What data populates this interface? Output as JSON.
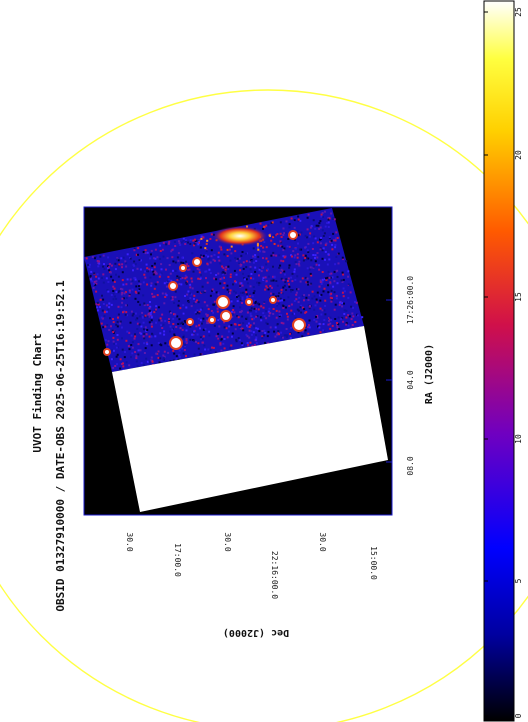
{
  "title": {
    "line1": "UVOT Finding Chart",
    "line2": "OBSID 01327910000 / DATE-OBS 2025-06-25T16:19:52.1"
  },
  "ra_axis": {
    "label": "RA (J2000)",
    "ticks": [
      "17:26:00.0",
      "04.0",
      "08.0"
    ]
  },
  "dec_axis": {
    "label": "Dec (J2000)",
    "ticks": [
      "30.0",
      "17:00.0",
      "30.0",
      "22:16:00.0",
      "30.0",
      "15:00.0"
    ]
  },
  "colorbar": {
    "min": 0,
    "max": 25,
    "ticks": [
      "25",
      "20",
      "15",
      "10",
      "5",
      "0"
    ],
    "colors": [
      "#000000",
      "#0000a0",
      "#0000ff",
      "#7000c0",
      "#d0104a",
      "#ff5a00",
      "#ffd000",
      "#ffff40",
      "#ffffff"
    ]
  },
  "colors": {
    "circle": "#ffff44",
    "frame": "#1a1acc"
  }
}
